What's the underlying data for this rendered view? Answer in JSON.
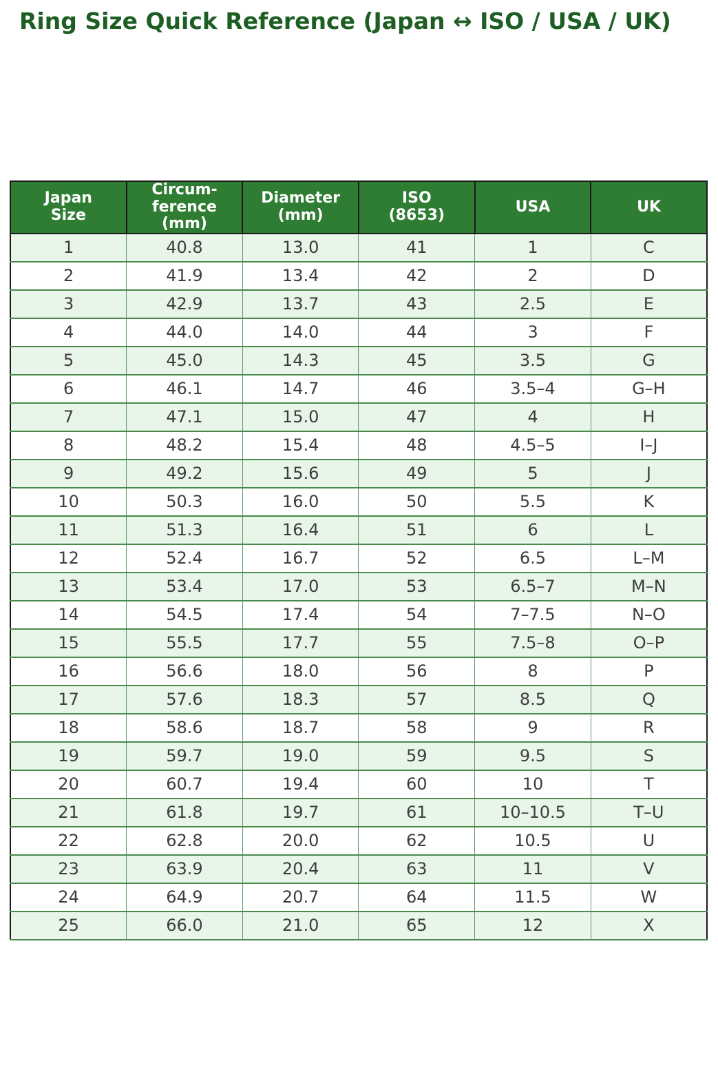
{
  "page": {
    "title": "Ring Size Quick Reference (Japan ↔ ISO / USA / UK)"
  },
  "colors": {
    "title_text": "#1d5e23",
    "header_bg": "#2e7d32",
    "header_text": "#ffffff",
    "row_alt_bg": "#e8f5e9",
    "row_bg": "#ffffff",
    "body_border": "#4a8a4c",
    "header_border": "#1a1a1a",
    "cell_text": "#3d3d3d"
  },
  "table": {
    "display_headers": [
      "Japan\nSize",
      "Circum-\nference\n(mm)",
      "Diameter\n(mm)",
      "ISO\n(8653)",
      "USA",
      "UK"
    ]
  },
  "chart_data": {
    "type": "table",
    "title": "Ring Size Quick Reference (Japan ↔ ISO / USA / UK)",
    "columns": [
      "Japan Size",
      "Circumference (mm)",
      "Diameter (mm)",
      "ISO (8653)",
      "USA",
      "UK"
    ],
    "rows": [
      [
        "1",
        "40.8",
        "13.0",
        "41",
        "1",
        "C"
      ],
      [
        "2",
        "41.9",
        "13.4",
        "42",
        "2",
        "D"
      ],
      [
        "3",
        "42.9",
        "13.7",
        "43",
        "2.5",
        "E"
      ],
      [
        "4",
        "44.0",
        "14.0",
        "44",
        "3",
        "F"
      ],
      [
        "5",
        "45.0",
        "14.3",
        "45",
        "3.5",
        "G"
      ],
      [
        "6",
        "46.1",
        "14.7",
        "46",
        "3.5–4",
        "G–H"
      ],
      [
        "7",
        "47.1",
        "15.0",
        "47",
        "4",
        "H"
      ],
      [
        "8",
        "48.2",
        "15.4",
        "48",
        "4.5–5",
        "I–J"
      ],
      [
        "9",
        "49.2",
        "15.6",
        "49",
        "5",
        "J"
      ],
      [
        "10",
        "50.3",
        "16.0",
        "50",
        "5.5",
        "K"
      ],
      [
        "11",
        "51.3",
        "16.4",
        "51",
        "6",
        "L"
      ],
      [
        "12",
        "52.4",
        "16.7",
        "52",
        "6.5",
        "L–M"
      ],
      [
        "13",
        "53.4",
        "17.0",
        "53",
        "6.5–7",
        "M–N"
      ],
      [
        "14",
        "54.5",
        "17.4",
        "54",
        "7–7.5",
        "N–O"
      ],
      [
        "15",
        "55.5",
        "17.7",
        "55",
        "7.5–8",
        "O–P"
      ],
      [
        "16",
        "56.6",
        "18.0",
        "56",
        "8",
        "P"
      ],
      [
        "17",
        "57.6",
        "18.3",
        "57",
        "8.5",
        "Q"
      ],
      [
        "18",
        "58.6",
        "18.7",
        "58",
        "9",
        "R"
      ],
      [
        "19",
        "59.7",
        "19.0",
        "59",
        "9.5",
        "S"
      ],
      [
        "20",
        "60.7",
        "19.4",
        "60",
        "10",
        "T"
      ],
      [
        "21",
        "61.8",
        "19.7",
        "61",
        "10–10.5",
        "T–U"
      ],
      [
        "22",
        "62.8",
        "20.0",
        "62",
        "10.5",
        "U"
      ],
      [
        "23",
        "63.9",
        "20.4",
        "63",
        "11",
        "V"
      ],
      [
        "24",
        "64.9",
        "20.7",
        "64",
        "11.5",
        "W"
      ],
      [
        "25",
        "66.0",
        "21.0",
        "65",
        "12",
        "X"
      ]
    ]
  }
}
